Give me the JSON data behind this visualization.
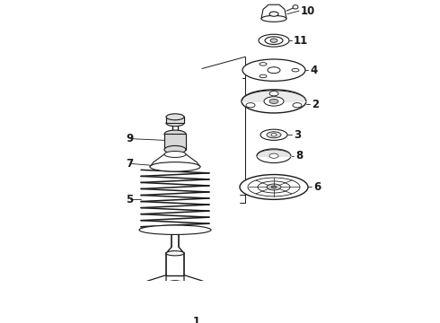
{
  "background_color": "#ffffff",
  "line_color": "#1a1a1a",
  "figure_width": 4.9,
  "figure_height": 3.6,
  "dpi": 100
}
